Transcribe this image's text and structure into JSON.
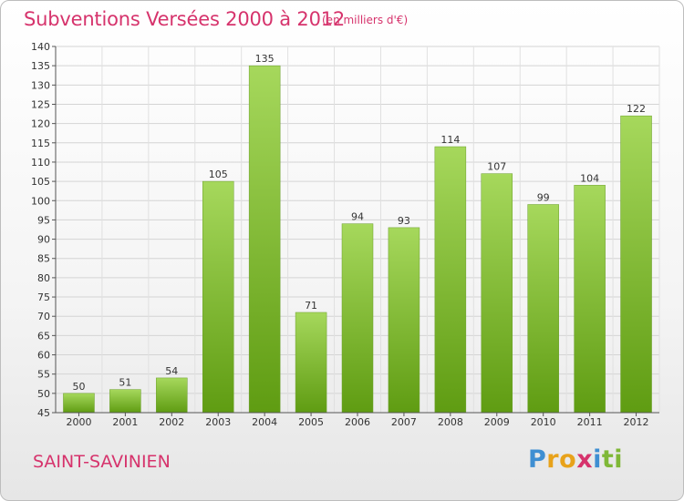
{
  "header": {
    "title": "Subventions Versées 2000 à 2012",
    "subtitle": "(en milliers d'€)"
  },
  "footer": {
    "town": "SAINT-SAVINIEN",
    "brand_letters": [
      "P",
      "r",
      "o",
      "x",
      "i",
      "t",
      "i"
    ],
    "brand_colors": [
      "#3f8fd2",
      "#e8a21a",
      "#e8a21a",
      "#d6336c",
      "#3f8fd2",
      "#7fb837",
      "#7fb837"
    ]
  },
  "colors": {
    "accent": "#d6336c",
    "bar_top": "#a6d85c",
    "bar_bottom": "#5f9c12"
  },
  "chart_data": {
    "type": "bar",
    "categories": [
      "2000",
      "2001",
      "2002",
      "2003",
      "2004",
      "2005",
      "2006",
      "2007",
      "2008",
      "2009",
      "2010",
      "2011",
      "2012"
    ],
    "values": [
      50,
      51,
      54,
      105,
      135,
      71,
      94,
      93,
      114,
      107,
      99,
      104,
      122
    ],
    "ylim": [
      45,
      140
    ],
    "yticks": [
      45,
      50,
      55,
      60,
      65,
      70,
      75,
      80,
      85,
      90,
      95,
      100,
      105,
      110,
      115,
      120,
      125,
      130,
      135,
      140
    ],
    "grid": true,
    "legend": "none"
  }
}
